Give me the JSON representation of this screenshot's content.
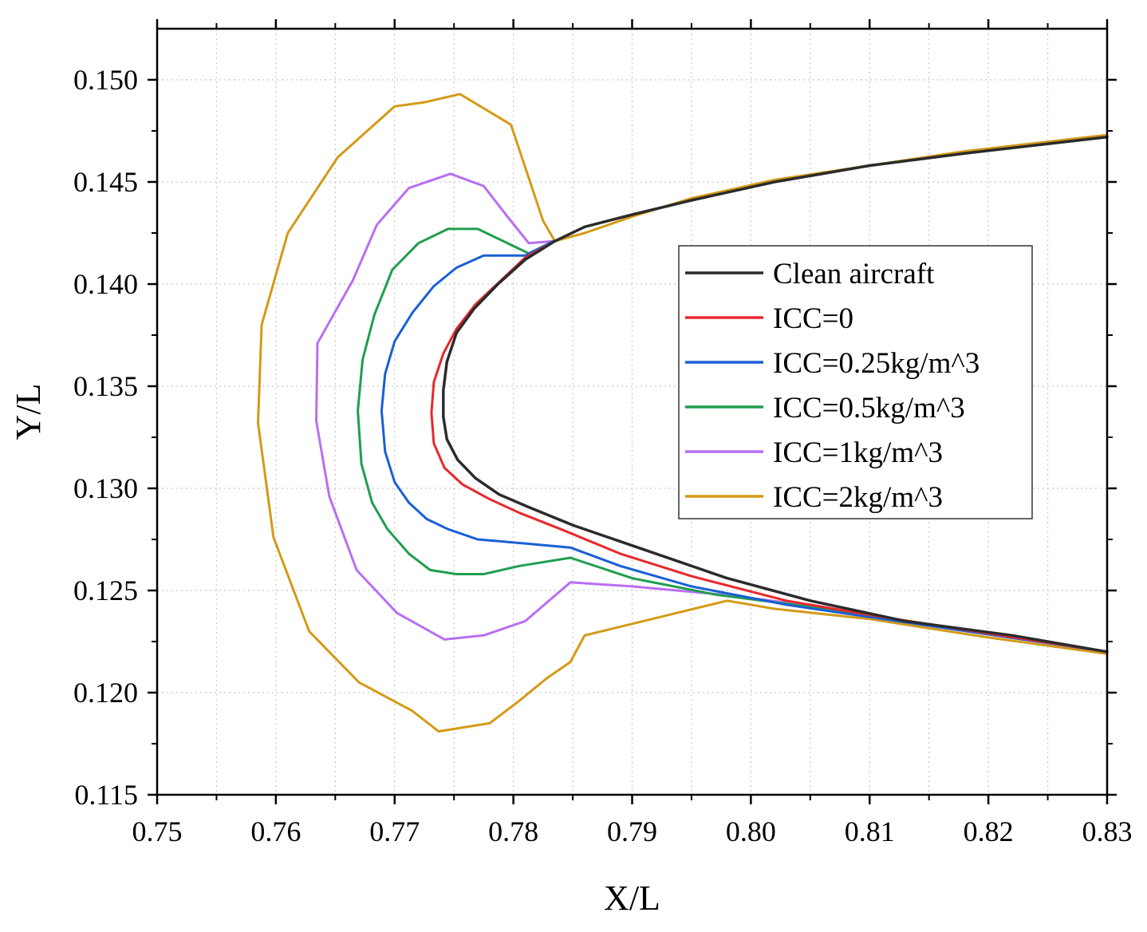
{
  "chart_data": {
    "type": "line",
    "title": "",
    "xlabel": "X/L",
    "ylabel": "Y/L",
    "xlim": [
      0.75,
      0.83
    ],
    "ylim": [
      0.115,
      0.1525
    ],
    "xticks": [
      0.75,
      0.76,
      0.77,
      0.78,
      0.79,
      0.8,
      0.81,
      0.82,
      0.83
    ],
    "xtick_labels": [
      "0.75",
      "0.76",
      "0.77",
      "0.78",
      "0.79",
      "0.80",
      "0.81",
      "0.82",
      "0.83"
    ],
    "yticks": [
      0.115,
      0.12,
      0.125,
      0.13,
      0.135,
      0.14,
      0.145,
      0.15
    ],
    "ytick_labels": [
      "0.115",
      "0.120",
      "0.125",
      "0.130",
      "0.135",
      "0.140",
      "0.145",
      "0.150"
    ],
    "grid": true,
    "legend_position": "right-center",
    "series": [
      {
        "name": "Clean aircraft",
        "color": "#2b2b2b",
        "points": [
          [
            0.83,
            0.1472
          ],
          [
            0.818,
            0.1464
          ],
          [
            0.81,
            0.1458
          ],
          [
            0.802,
            0.145
          ],
          [
            0.795,
            0.1441
          ],
          [
            0.79,
            0.1434
          ],
          [
            0.786,
            0.1428
          ],
          [
            0.7835,
            0.1421
          ],
          [
            0.781,
            0.1412
          ],
          [
            0.7787,
            0.14
          ],
          [
            0.7767,
            0.1388
          ],
          [
            0.7752,
            0.1376
          ],
          [
            0.7744,
            0.1362
          ],
          [
            0.7741,
            0.1348
          ],
          [
            0.7741,
            0.1335
          ],
          [
            0.7744,
            0.1324
          ],
          [
            0.7753,
            0.1314
          ],
          [
            0.7768,
            0.1305
          ],
          [
            0.7788,
            0.1297
          ],
          [
            0.7812,
            0.1291
          ],
          [
            0.785,
            0.1282
          ],
          [
            0.79,
            0.1272
          ],
          [
            0.798,
            0.1256
          ],
          [
            0.805,
            0.1245
          ],
          [
            0.813,
            0.1235
          ],
          [
            0.822,
            0.1228
          ],
          [
            0.83,
            0.122
          ]
        ]
      },
      {
        "name": "ICC=0",
        "color": "#e8282c",
        "points": [
          [
            0.7835,
            0.1421
          ],
          [
            0.781,
            0.1413
          ],
          [
            0.779,
            0.1402
          ],
          [
            0.7768,
            0.139
          ],
          [
            0.7752,
            0.1378
          ],
          [
            0.7741,
            0.1366
          ],
          [
            0.7733,
            0.1352
          ],
          [
            0.7731,
            0.1337
          ],
          [
            0.7733,
            0.1322
          ],
          [
            0.7742,
            0.131
          ],
          [
            0.7757,
            0.1302
          ],
          [
            0.7779,
            0.1295
          ],
          [
            0.7805,
            0.1288
          ],
          [
            0.784,
            0.128
          ],
          [
            0.789,
            0.1268
          ],
          [
            0.795,
            0.1257
          ],
          [
            0.803,
            0.1245
          ],
          [
            0.81,
            0.1238
          ],
          [
            0.83,
            0.122
          ]
        ]
      },
      {
        "name": "ICC=0.25kg/m^3",
        "color": "#1a5fd6",
        "points": [
          [
            0.7834,
            0.1421
          ],
          [
            0.781,
            0.1414
          ],
          [
            0.7775,
            0.1414
          ],
          [
            0.7752,
            0.1408
          ],
          [
            0.7733,
            0.1399
          ],
          [
            0.7715,
            0.1386
          ],
          [
            0.77,
            0.1372
          ],
          [
            0.7692,
            0.1356
          ],
          [
            0.7689,
            0.1338
          ],
          [
            0.7692,
            0.1318
          ],
          [
            0.77,
            0.1303
          ],
          [
            0.7712,
            0.1293
          ],
          [
            0.7727,
            0.1285
          ],
          [
            0.7745,
            0.128
          ],
          [
            0.777,
            0.1275
          ],
          [
            0.781,
            0.1273
          ],
          [
            0.7848,
            0.1271
          ],
          [
            0.789,
            0.1262
          ],
          [
            0.795,
            0.1252
          ],
          [
            0.803,
            0.1243
          ],
          [
            0.81,
            0.1237
          ],
          [
            0.83,
            0.122
          ]
        ]
      },
      {
        "name": "ICC=0.5kg/m^3",
        "color": "#1f9e4e",
        "points": [
          [
            0.7834,
            0.1421
          ],
          [
            0.7813,
            0.1415
          ],
          [
            0.777,
            0.1427
          ],
          [
            0.7745,
            0.1427
          ],
          [
            0.772,
            0.142
          ],
          [
            0.7698,
            0.1407
          ],
          [
            0.7683,
            0.1385
          ],
          [
            0.7673,
            0.1363
          ],
          [
            0.7669,
            0.1338
          ],
          [
            0.7672,
            0.1312
          ],
          [
            0.7681,
            0.1293
          ],
          [
            0.7694,
            0.128
          ],
          [
            0.7712,
            0.1268
          ],
          [
            0.773,
            0.126
          ],
          [
            0.7752,
            0.1258
          ],
          [
            0.7775,
            0.1258
          ],
          [
            0.7805,
            0.1262
          ],
          [
            0.7848,
            0.1266
          ],
          [
            0.79,
            0.1256
          ],
          [
            0.797,
            0.1248
          ],
          [
            0.805,
            0.1242
          ],
          [
            0.812,
            0.1236
          ],
          [
            0.83,
            0.122
          ]
        ]
      },
      {
        "name": "ICC=1kg/m^3",
        "color": "#b86ff2",
        "points": [
          [
            0.7834,
            0.1421
          ],
          [
            0.7813,
            0.142
          ],
          [
            0.7795,
            0.1433
          ],
          [
            0.7775,
            0.1448
          ],
          [
            0.7747,
            0.1454
          ],
          [
            0.7712,
            0.1447
          ],
          [
            0.7685,
            0.1429
          ],
          [
            0.7665,
            0.1402
          ],
          [
            0.7635,
            0.1371
          ],
          [
            0.7634,
            0.1333
          ],
          [
            0.7645,
            0.1296
          ],
          [
            0.7668,
            0.126
          ],
          [
            0.7702,
            0.1239
          ],
          [
            0.7742,
            0.1226
          ],
          [
            0.7775,
            0.1228
          ],
          [
            0.781,
            0.1235
          ],
          [
            0.7848,
            0.1254
          ],
          [
            0.79,
            0.1252
          ],
          [
            0.7975,
            0.1248
          ],
          [
            0.806,
            0.1242
          ],
          [
            0.813,
            0.1235
          ],
          [
            0.83,
            0.122
          ]
        ]
      },
      {
        "name": "ICC=2kg/m^3",
        "color": "#d49a16",
        "points": [
          [
            0.83,
            0.1473
          ],
          [
            0.818,
            0.1465
          ],
          [
            0.81,
            0.1458
          ],
          [
            0.802,
            0.1451
          ],
          [
            0.795,
            0.1442
          ],
          [
            0.79,
            0.1433
          ],
          [
            0.786,
            0.1425
          ],
          [
            0.7835,
            0.1421
          ],
          [
            0.7825,
            0.1431
          ],
          [
            0.7798,
            0.1478
          ],
          [
            0.7755,
            0.1493
          ],
          [
            0.7725,
            0.1489
          ],
          [
            0.77,
            0.1487
          ],
          [
            0.7652,
            0.1462
          ],
          [
            0.761,
            0.1425
          ],
          [
            0.7588,
            0.138
          ],
          [
            0.7585,
            0.1332
          ],
          [
            0.7598,
            0.1276
          ],
          [
            0.7628,
            0.123
          ],
          [
            0.767,
            0.1205
          ],
          [
            0.7715,
            0.1191
          ],
          [
            0.7737,
            0.1181
          ],
          [
            0.778,
            0.1185
          ],
          [
            0.7805,
            0.1196
          ],
          [
            0.7828,
            0.1207
          ],
          [
            0.7848,
            0.1215
          ],
          [
            0.786,
            0.1228
          ],
          [
            0.798,
            0.1245
          ],
          [
            0.802,
            0.1241
          ],
          [
            0.81,
            0.1236
          ],
          [
            0.82,
            0.1227
          ],
          [
            0.83,
            0.1219
          ]
        ]
      }
    ]
  }
}
